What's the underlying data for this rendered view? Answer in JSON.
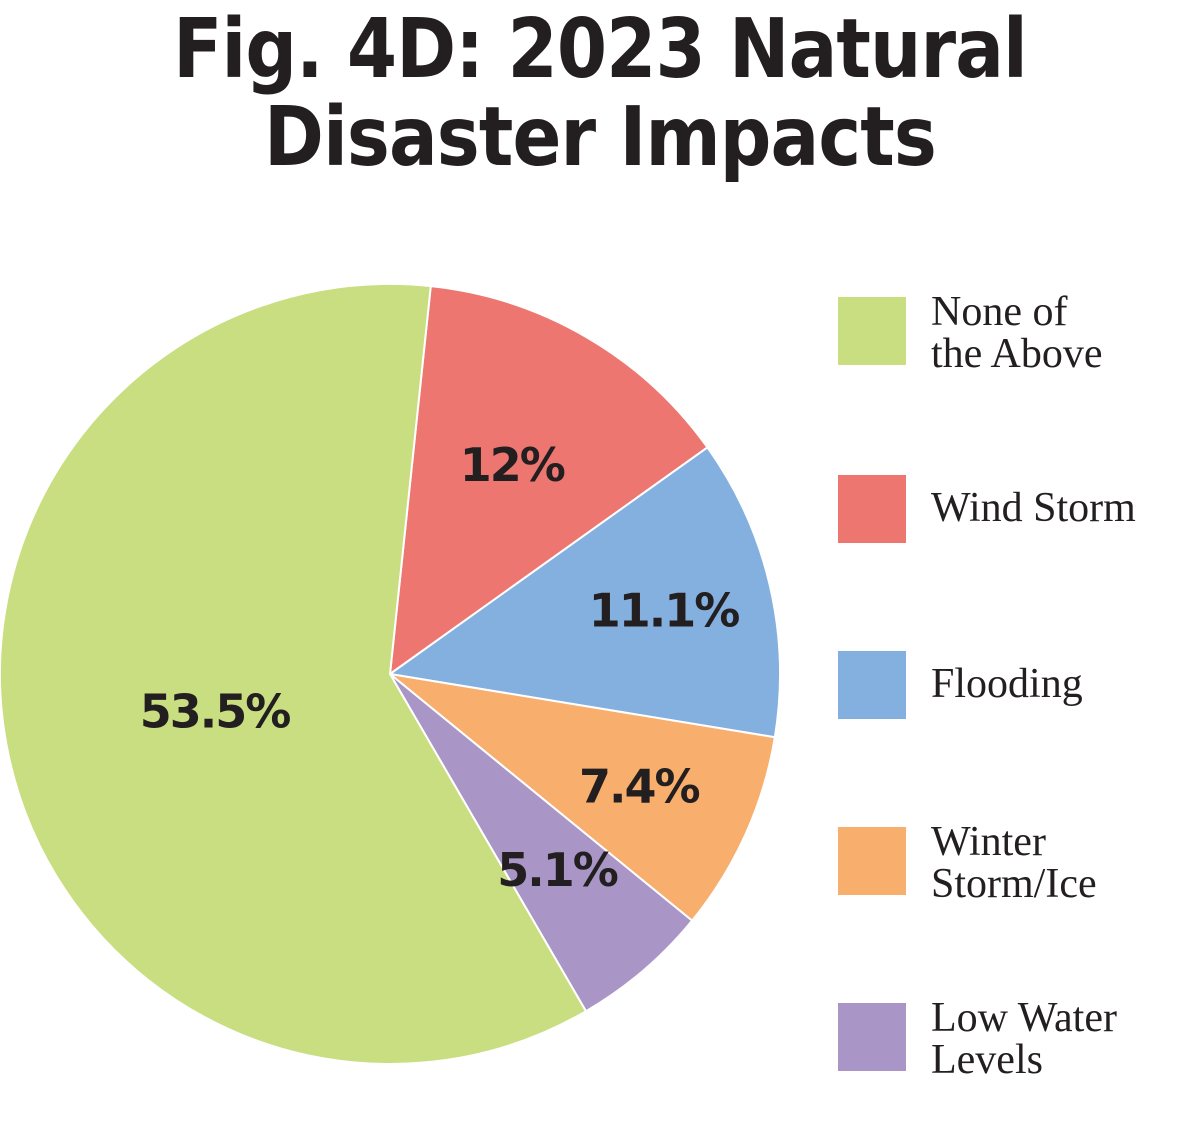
{
  "chart_data": {
    "type": "pie",
    "title": "Fig. 4D: 2023 Natural Disaster Impacts",
    "slices": [
      {
        "label": "None of\nthe Above",
        "value": 53.5,
        "display": "53.5%",
        "color": "#c8de80"
      },
      {
        "label": "Wind Storm",
        "value": 12,
        "display": "12%",
        "color": "#ee7670"
      },
      {
        "label": "Flooding",
        "value": 11.1,
        "display": "11.1%",
        "color": "#83b0de"
      },
      {
        "label": "Winter\nStorm/Ice",
        "value": 7.4,
        "display": "7.4%",
        "color": "#f8ae6d"
      },
      {
        "label": "Low Water\nLevels",
        "value": 5.1,
        "display": "5.1%",
        "color": "#a996c7"
      }
    ],
    "legend_position": "right"
  }
}
